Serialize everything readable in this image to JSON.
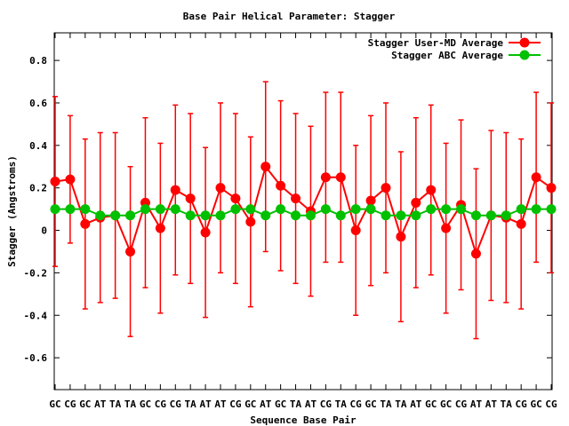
{
  "chart_data": {
    "type": "line",
    "title": "Base Pair Helical Parameter: Stagger",
    "xlabel": "Sequence Base Pair",
    "ylabel": "Stagger (Angstroms)",
    "ylim": [
      -0.75,
      0.93
    ],
    "yticks": [
      -0.6,
      -0.4,
      -0.2,
      0,
      0.2,
      0.4,
      0.6,
      0.8
    ],
    "ytick_labels": [
      "-0.6",
      "-0.4",
      "-0.2",
      "0",
      "0.2",
      "0.4",
      "0.6",
      "0.8"
    ],
    "categories": [
      "GC",
      "CG",
      "GC",
      "AT",
      "TA",
      "TA",
      "GC",
      "CG",
      "CG",
      "TA",
      "AT",
      "AT",
      "CG",
      "GC",
      "AT",
      "GC",
      "TA",
      "AT",
      "CG",
      "TA",
      "CG",
      "GC",
      "TA",
      "TA",
      "AT",
      "GC",
      "GC",
      "CG",
      "AT",
      "AT",
      "TA",
      "CG",
      "GC",
      "CG"
    ],
    "legend_position": "top-right",
    "grid": false,
    "series": [
      {
        "name": "Stagger User-MD Average",
        "color": "#ff0000",
        "values": [
          0.23,
          0.24,
          0.03,
          0.06,
          0.07,
          -0.1,
          0.13,
          0.01,
          0.19,
          0.15,
          -0.01,
          0.2,
          0.15,
          0.04,
          0.3,
          0.21,
          0.15,
          0.09,
          0.25,
          0.25,
          0.0,
          0.14,
          0.2,
          -0.03,
          0.13,
          0.19,
          0.01,
          0.12,
          -0.11,
          0.07,
          0.06,
          0.03,
          0.25,
          0.2
        ],
        "errors": [
          0.4,
          0.3,
          0.4,
          0.4,
          0.39,
          0.4,
          0.4,
          0.4,
          0.4,
          0.4,
          0.4,
          0.4,
          0.4,
          0.4,
          0.4,
          0.4,
          0.4,
          0.4,
          0.4,
          0.4,
          0.4,
          0.4,
          0.4,
          0.4,
          0.4,
          0.4,
          0.4,
          0.4,
          0.4,
          0.4,
          0.4,
          0.4,
          0.4,
          0.4
        ]
      },
      {
        "name": "Stagger ABC Average",
        "color": "#00c000",
        "values": [
          0.1,
          0.1,
          0.1,
          0.07,
          0.07,
          0.07,
          0.1,
          0.1,
          0.1,
          0.07,
          0.07,
          0.07,
          0.1,
          0.1,
          0.07,
          0.1,
          0.07,
          0.07,
          0.1,
          0.07,
          0.1,
          0.1,
          0.07,
          0.07,
          0.07,
          0.1,
          0.1,
          0.1,
          0.07,
          0.07,
          0.07,
          0.1,
          0.1,
          0.1
        ]
      }
    ]
  }
}
